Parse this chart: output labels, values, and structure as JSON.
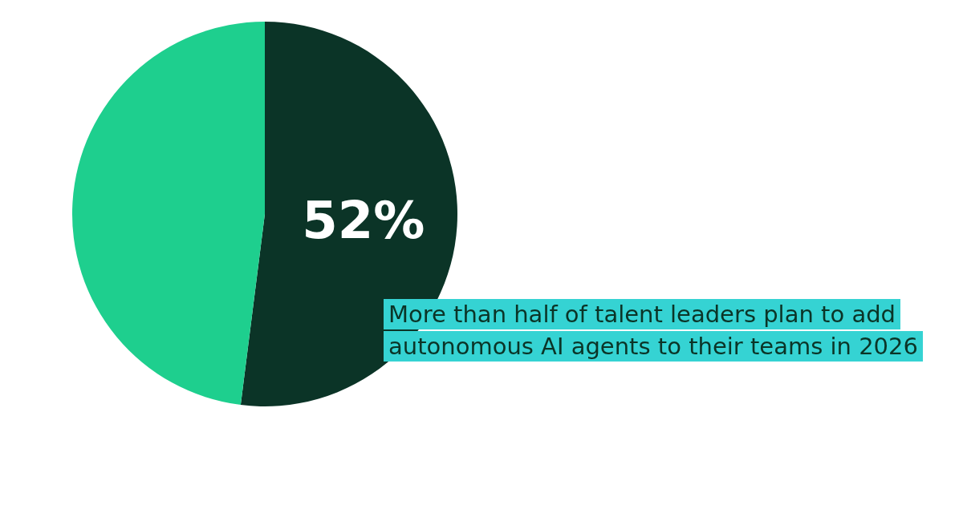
{
  "chart_data": {
    "type": "pie",
    "categories": [
      null,
      null
    ],
    "values": [
      52,
      48
    ],
    "colors": [
      "#0b3427",
      "#1ecf8e"
    ],
    "value_labels": [
      "52%",
      null
    ],
    "annotations": [
      "More than half of talent leaders plan to add autonomous AI agents to their teams in 2026"
    ]
  }
}
